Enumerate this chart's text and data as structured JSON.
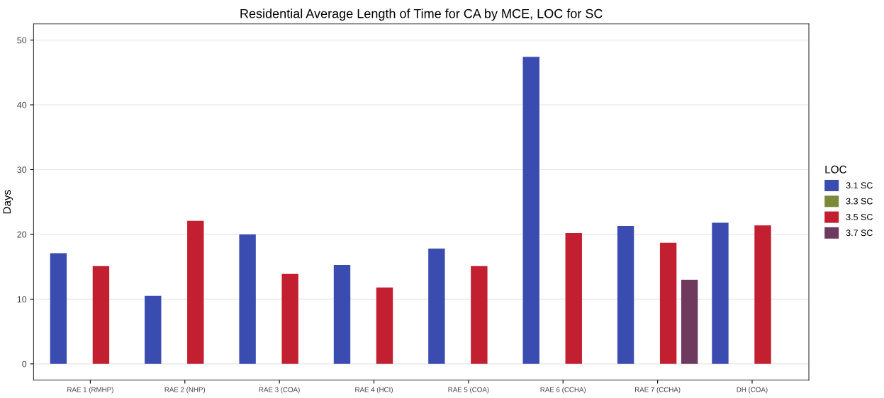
{
  "chart_data": {
    "type": "bar",
    "title": "Residential Average Length of Time for CA by MCE, LOC for SC",
    "ylabel": "Days",
    "legend_title": "LOC",
    "categories": [
      "RAE 1 (RMHP)",
      "RAE 2 (NHP)",
      "RAE 3 (COA)",
      "RAE 4 (HCI)",
      "RAE 5 (COA)",
      "RAE 6 (CCHA)",
      "RAE 7 (CCHA)",
      "DH (COA)"
    ],
    "series": [
      {
        "name": "3.1 SC",
        "color": "#3b4cb0",
        "values": [
          17.1,
          10.5,
          20.0,
          15.3,
          17.8,
          47.4,
          21.3,
          21.8
        ]
      },
      {
        "name": "3.3 SC",
        "color": "#7a8a3a",
        "values": [
          null,
          null,
          null,
          null,
          null,
          null,
          null,
          null
        ]
      },
      {
        "name": "3.5 SC",
        "color": "#c21f30",
        "values": [
          15.1,
          22.1,
          13.9,
          11.8,
          15.1,
          20.2,
          18.7,
          21.4
        ]
      },
      {
        "name": "3.7 SC",
        "color": "#6e3a5e",
        "values": [
          null,
          null,
          null,
          null,
          null,
          null,
          13.0,
          null
        ]
      }
    ],
    "ylim": [
      -2.5,
      52.5
    ],
    "yticks": [
      0,
      10,
      20,
      30,
      40,
      50
    ],
    "grid": "y",
    "legend": "right"
  }
}
